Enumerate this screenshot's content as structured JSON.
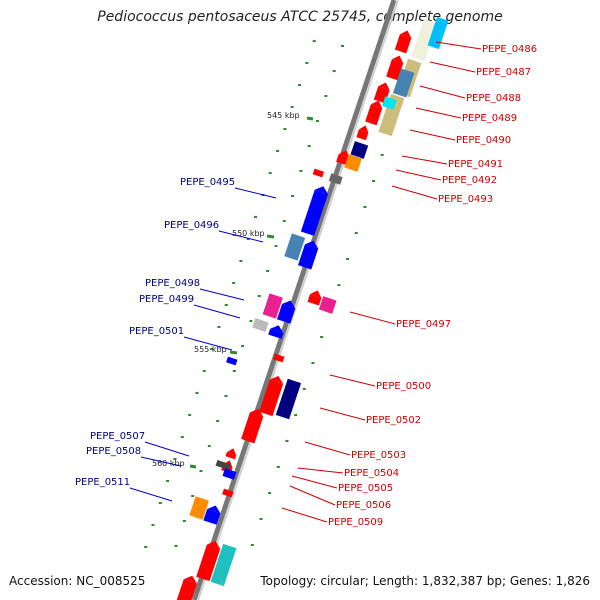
{
  "title": "Pediococcus pentosaceus ATCC 25745, complete genome",
  "accession": "Accession: NC_008525",
  "summary": "Topology: circular; Length: 1,832,387 bp; Genes: 1,826",
  "colors": {
    "right_label": "#cc0000",
    "left_label": "#000080",
    "backbone": "#888888",
    "tick": "#2e8b2e"
  },
  "kbp_labels": [
    {
      "text": "545 kbp"
    },
    {
      "text": "550 kbp"
    },
    {
      "text": "555 kbp"
    },
    {
      "text": "560 kbp"
    }
  ],
  "right_genes": [
    {
      "label": "PEPE_0486"
    },
    {
      "label": "PEPE_0487"
    },
    {
      "label": "PEPE_0488"
    },
    {
      "label": "PEPE_0489"
    },
    {
      "label": "PEPE_0490"
    },
    {
      "label": "PEPE_0491"
    },
    {
      "label": "PEPE_0492"
    },
    {
      "label": "PEPE_0493"
    },
    {
      "label": "PEPE_0497"
    },
    {
      "label": "PEPE_0500"
    },
    {
      "label": "PEPE_0502"
    },
    {
      "label": "PEPE_0503"
    },
    {
      "label": "PEPE_0504"
    },
    {
      "label": "PEPE_0505"
    },
    {
      "label": "PEPE_0506"
    },
    {
      "label": "PEPE_0509"
    }
  ],
  "left_genes": [
    {
      "label": "PEPE_0495"
    },
    {
      "label": "PEPE_0496"
    },
    {
      "label": "PEPE_0498"
    },
    {
      "label": "PEPE_0499"
    },
    {
      "label": "PEPE_0501"
    },
    {
      "label": "PEPE_0507"
    },
    {
      "label": "PEPE_0508"
    },
    {
      "label": "PEPE_0511"
    }
  ]
}
